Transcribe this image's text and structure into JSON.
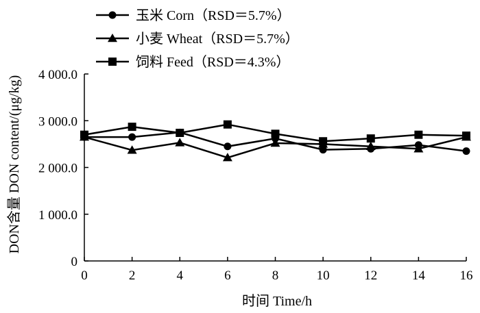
{
  "chart_data": {
    "type": "line",
    "title": "",
    "xlabel": "时间  Time/h",
    "ylabel": "DON含量  DON content/(μg/kg)",
    "xlim": [
      0,
      16
    ],
    "ylim": [
      0,
      4000
    ],
    "x_ticks": [
      0,
      2,
      4,
      6,
      8,
      10,
      12,
      14,
      16
    ],
    "y_ticks": [
      0,
      1000,
      2000,
      3000,
      4000
    ],
    "x_tick_labels": [
      "0",
      "2",
      "4",
      "6",
      "8",
      "10",
      "12",
      "14",
      "16"
    ],
    "y_tick_labels": [
      "0",
      "1 000.0",
      "2 000.0",
      "3 000.0",
      "4 000.0"
    ],
    "x": [
      0,
      2,
      4,
      6,
      8,
      10,
      12,
      14,
      16
    ],
    "grid": false,
    "legend_position": "top-left",
    "series": [
      {
        "name": "玉米  Corn（RSD＝5.7%）",
        "marker": "circle",
        "values": [
          2650,
          2650,
          2750,
          2450,
          2620,
          2380,
          2400,
          2480,
          2350
        ]
      },
      {
        "name": "小麦  Wheat（RSD＝5.7%）",
        "marker": "triangle",
        "values": [
          2650,
          2370,
          2530,
          2210,
          2520,
          2500,
          2450,
          2400,
          2650
        ]
      },
      {
        "name": "饲料  Feed（RSD＝4.3%）",
        "marker": "square",
        "values": [
          2700,
          2870,
          2740,
          2920,
          2720,
          2560,
          2620,
          2700,
          2680
        ]
      }
    ],
    "colors": {
      "line": "#000000",
      "marker": "#000000"
    }
  }
}
